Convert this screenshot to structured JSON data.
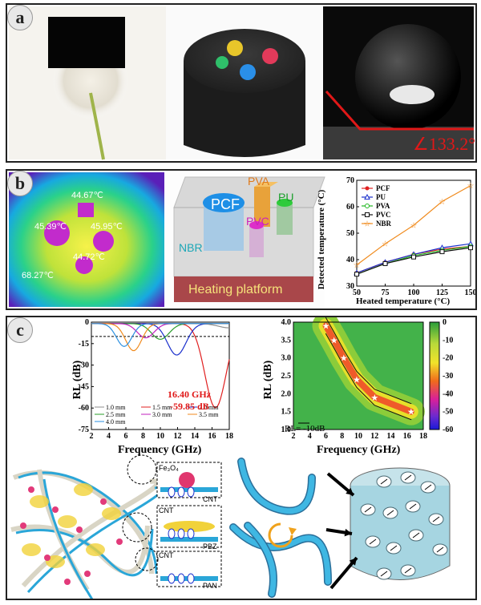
{
  "panels": {
    "a": {
      "label": "a",
      "contact_angle": "∠133.2°"
    },
    "b": {
      "label": "b",
      "thermal_temps": [
        "44.67℃",
        "45.39℃",
        "45.95℃",
        "44.72℃",
        "68.27℃"
      ],
      "schematic": {
        "pcf": "PCF",
        "pva": "PVA",
        "pu": "PU",
        "pvc": "PVC",
        "nbr": "NBR",
        "platform": "Heating platform"
      }
    },
    "c": {
      "label": "c",
      "rl_annotation_freq": "16.40 GHz",
      "rl_annotation_value": "-59.85 dB",
      "contour_legend": "RL= -10dB",
      "colorbar_ticks": [
        "0",
        "-10",
        "-20",
        "-30",
        "-40",
        "-50",
        "-60"
      ],
      "mechanisms": {
        "fe3o4": "Fe₃O₄",
        "cnt_top": "CNT",
        "cnt_mid": "CNT",
        "pbz": "PBZ",
        "cnt_bot": "CNT",
        "pan": "PAN"
      }
    }
  },
  "chart_data": [
    {
      "type": "line",
      "xlabel": "Heated temperature (°C)",
      "ylabel": "Detected temperature (°C)",
      "x": [
        50,
        75,
        100,
        125,
        150
      ],
      "xlim": [
        50,
        150
      ],
      "ylim": [
        30,
        70
      ],
      "xticks": [
        "50",
        "75",
        "100",
        "125",
        "150"
      ],
      "yticks": [
        "30",
        "40",
        "50",
        "60",
        "70"
      ],
      "legend_position": "top-left",
      "series": [
        {
          "name": "PCF",
          "color": "#e02020",
          "marker": "circle-filled",
          "values": [
            35,
            39,
            42,
            44,
            45
          ]
        },
        {
          "name": "PU",
          "color": "#1a2fcc",
          "marker": "triangle",
          "values": [
            35,
            39,
            42,
            44.5,
            46
          ]
        },
        {
          "name": "PVA",
          "color": "#1fb81f",
          "marker": "circle",
          "values": [
            34.5,
            38.5,
            41.5,
            43.5,
            45
          ]
        },
        {
          "name": "PVC",
          "color": "#111111",
          "marker": "square",
          "values": [
            34.5,
            38.5,
            41,
            43,
            44.5
          ]
        },
        {
          "name": "NBR",
          "color": "#f08a1c",
          "marker": "star",
          "values": [
            38,
            46,
            53,
            62,
            68
          ]
        }
      ]
    },
    {
      "type": "line",
      "xlabel": "Frequency (GHz)",
      "ylabel": "RL (dB)",
      "xlim": [
        2,
        18
      ],
      "ylim": [
        -75,
        0
      ],
      "xticks": [
        "2",
        "4",
        "6",
        "8",
        "10",
        "12",
        "14",
        "16",
        "18"
      ],
      "yticks": [
        "0",
        "-15",
        "-30",
        "-45",
        "-60",
        "-75"
      ],
      "reference_line": -10,
      "legend_position": "bottom-left",
      "series": [
        {
          "name": "1.0 mm",
          "color": "#8c8c8c",
          "dip_freq": 18,
          "dip_value": -4
        },
        {
          "name": "1.5 mm",
          "color": "#e02020",
          "dip_freq": 16.4,
          "dip_value": -59.85
        },
        {
          "name": "2.0 mm",
          "color": "#1a2fcc",
          "dip_freq": 11.9,
          "dip_value": -23
        },
        {
          "name": "2.5 mm",
          "color": "#2a9d2a",
          "dip_freq": 10,
          "dip_value": -12
        },
        {
          "name": "3.0 mm",
          "color": "#c21fbd",
          "dip_freq": 8.3,
          "dip_value": -11
        },
        {
          "name": "3.5 mm",
          "color": "#f08a1c",
          "dip_freq": 6.9,
          "dip_value": -20
        },
        {
          "name": "4.0 mm",
          "color": "#2a8fe0",
          "dip_freq": 5.8,
          "dip_value": -17
        }
      ]
    },
    {
      "type": "heatmap",
      "xlabel": "Frequency (GHz)",
      "ylabel": "RL (dB)",
      "xlim": [
        2,
        18
      ],
      "ylim": [
        1.0,
        4.0
      ],
      "xticks": [
        "2",
        "4",
        "6",
        "8",
        "10",
        "12",
        "14",
        "16",
        "18"
      ],
      "yticks": [
        "1.0",
        "1.5",
        "2.0",
        "2.5",
        "3.0",
        "3.5",
        "4.0"
      ],
      "colorbar_range": [
        -60,
        0
      ],
      "ridge_points": [
        [
          6.0,
          3.9
        ],
        [
          7.0,
          3.5
        ],
        [
          8.2,
          3.0
        ],
        [
          9.8,
          2.4
        ],
        [
          12.0,
          1.9
        ],
        [
          16.5,
          1.5
        ]
      ]
    }
  ]
}
